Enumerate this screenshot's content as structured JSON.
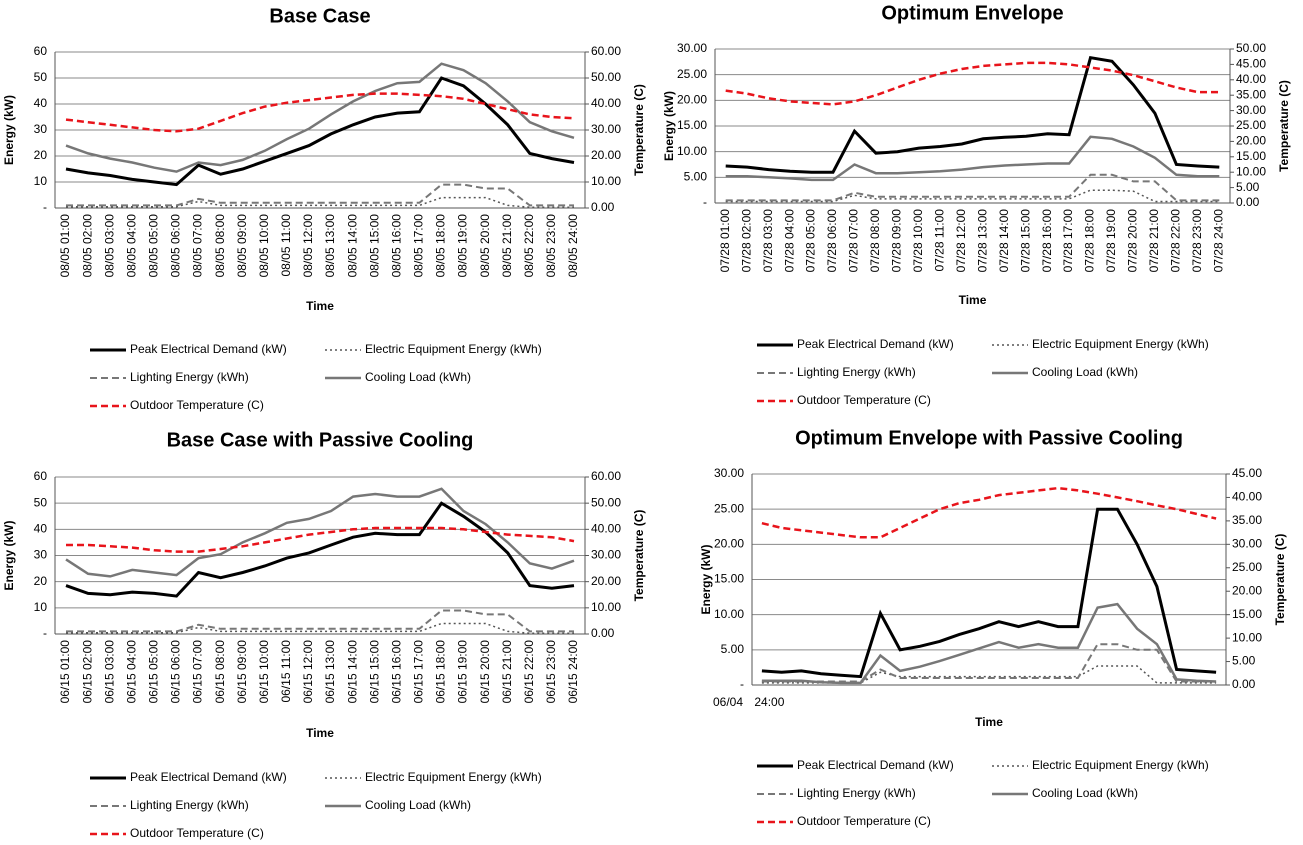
{
  "chart_data": [
    {
      "type": "line",
      "title": "Base Case",
      "xlabel": "Time",
      "ylabel": "Energy (kW)",
      "y2label": "Temperature (C)",
      "categories": [
        "08/05 01:00",
        "08/05 02:00",
        "08/05 03:00",
        "08/05 04:00",
        "08/05 05:00",
        "08/05 06:00",
        "08/05 07:00",
        "08/05 08:00",
        "08/05 09:00",
        "08/05 10:00",
        "08/05 11:00",
        "08/05 12:00",
        "08/05 13:00",
        "08/05 14:00",
        "08/05 15:00",
        "08/05 16:00",
        "08/05 17:00",
        "08/05 18:00",
        "08/05 19:00",
        "08/05 20:00",
        "08/05 21:00",
        "08/05 22:00",
        "08/05 23:00",
        "08/05 24:00"
      ],
      "ylim": [
        0,
        60
      ],
      "yticks": [
        {
          "value": 0,
          "label": "-"
        },
        10,
        20,
        30,
        40,
        50,
        60
      ],
      "y2lim": [
        0,
        60
      ],
      "y2ticks": [
        {
          "value": 0,
          "label": "0.00"
        },
        {
          "value": 10,
          "label": "10.00"
        },
        {
          "value": 20,
          "label": "20.00"
        },
        {
          "value": 30,
          "label": "30.00"
        },
        {
          "value": 40,
          "label": "40.00"
        },
        {
          "value": 50,
          "label": "50.00"
        },
        {
          "value": 60,
          "label": "60.00"
        }
      ],
      "grid": true,
      "series": [
        {
          "name": "Peak Electrical Demand (kW)",
          "color": "#000000",
          "style": "solid",
          "linewidth": 3,
          "values": [
            15,
            13.5,
            12.5,
            11,
            10,
            9,
            16.5,
            13,
            15,
            18,
            21,
            24,
            28.5,
            32,
            35,
            36.5,
            37,
            50,
            47,
            40,
            32,
            21,
            19,
            17.5
          ]
        },
        {
          "name": "Electric Equipment Energy (kWh)",
          "color": "#555555",
          "style": "dotted",
          "linewidth": 1.5,
          "values": [
            0.5,
            0.5,
            0.5,
            0.5,
            0.5,
            0.5,
            2.5,
            1,
            1,
            1,
            1,
            1,
            1,
            1,
            1,
            1,
            1,
            4,
            4,
            4,
            1,
            0.3,
            0.3,
            0.3
          ]
        },
        {
          "name": "Lighting Energy (kWh)",
          "color": "#777777",
          "style": "dashed",
          "linewidth": 2,
          "values": [
            1,
            1,
            1,
            1,
            1,
            1,
            3.5,
            2,
            2,
            2,
            2,
            2,
            2,
            2,
            2,
            2,
            2,
            9,
            9,
            7.5,
            7.5,
            1,
            1,
            1
          ]
        },
        {
          "name": "Cooling Load (kWh)",
          "color": "#777777",
          "style": "solid",
          "linewidth": 2.5,
          "values": [
            24,
            21,
            19,
            17.5,
            15.5,
            14,
            17.5,
            16.5,
            18.5,
            22,
            26.5,
            30.5,
            36,
            41,
            45,
            48,
            48.5,
            55.5,
            53,
            48,
            41,
            33,
            29.5,
            27
          ]
        },
        {
          "name": "Outdoor Temperature (C)",
          "color": "#e8141b",
          "style": "dashed",
          "linewidth": 2.5,
          "axis": "y2",
          "values": [
            34,
            33,
            32,
            31,
            30,
            29.5,
            30.5,
            33.5,
            36.5,
            39,
            40.5,
            41.5,
            42.5,
            43.5,
            44,
            44,
            43.5,
            43,
            42,
            40,
            38,
            36,
            35,
            34.5
          ]
        }
      ]
    },
    {
      "type": "line",
      "title": "Optimum Envelope",
      "xlabel": "Time",
      "ylabel": "Energy (kW)",
      "y2label": "Temperature (C)",
      "categories": [
        "07/28 01:00",
        "07/28 02:00",
        "07/28 03:00",
        "07/28 04:00",
        "07/28 05:00",
        "07/28 06:00",
        "07/28 07:00",
        "07/28 08:00",
        "07/28 09:00",
        "07/28 10:00",
        "07/28 11:00",
        "07/28 12:00",
        "07/28 13:00",
        "07/28 14:00",
        "07/28 15:00",
        "07/28 16:00",
        "07/28 17:00",
        "07/28 18:00",
        "07/28 19:00",
        "07/28 20:00",
        "07/28 21:00",
        "07/28 22:00",
        "07/28 23:00",
        "07/28 24:00"
      ],
      "ylim": [
        0,
        30
      ],
      "yticks": [
        {
          "value": 0,
          "label": "-"
        },
        {
          "value": 5,
          "label": "5.00"
        },
        {
          "value": 10,
          "label": "10.00"
        },
        {
          "value": 15,
          "label": "15.00"
        },
        {
          "value": 20,
          "label": "20.00"
        },
        {
          "value": 25,
          "label": "25.00"
        },
        {
          "value": 30,
          "label": "30.00"
        }
      ],
      "y2lim": [
        0,
        50
      ],
      "y2ticks": [
        {
          "value": 0,
          "label": "0.00"
        },
        {
          "value": 5,
          "label": "5.00"
        },
        {
          "value": 10,
          "label": "10.00"
        },
        {
          "value": 15,
          "label": "15.00"
        },
        {
          "value": 20,
          "label": "20.00"
        },
        {
          "value": 25,
          "label": "25.00"
        },
        {
          "value": 30,
          "label": "30.00"
        },
        {
          "value": 35,
          "label": "35.00"
        },
        {
          "value": 40,
          "label": "40.00"
        },
        {
          "value": 45,
          "label": "45.00"
        },
        {
          "value": 50,
          "label": "50.00"
        }
      ],
      "grid": true,
      "series": [
        {
          "name": "Peak Electrical Demand (kW)",
          "color": "#000000",
          "style": "solid",
          "linewidth": 3,
          "values": [
            7.2,
            7,
            6.5,
            6.2,
            6,
            6,
            14,
            9.7,
            10,
            10.7,
            11,
            11.5,
            12.5,
            12.8,
            13,
            13.5,
            13.3,
            28.3,
            27.6,
            23,
            17.5,
            7.5,
            7.2,
            7
          ]
        },
        {
          "name": "Electric Equipment Energy (kWh)",
          "color": "#555555",
          "style": "dotted",
          "linewidth": 1.5,
          "values": [
            0.3,
            0.3,
            0.3,
            0.3,
            0.3,
            0.3,
            1.5,
            0.8,
            0.8,
            0.8,
            0.8,
            0.8,
            0.8,
            0.8,
            0.8,
            0.8,
            0.8,
            2.5,
            2.5,
            2.3,
            0.3,
            0.3,
            0.3,
            0.3
          ]
        },
        {
          "name": "Lighting Energy (kWh)",
          "color": "#777777",
          "style": "dashed",
          "linewidth": 2,
          "values": [
            0.5,
            0.5,
            0.5,
            0.5,
            0.5,
            0.5,
            2,
            1.2,
            1.2,
            1.2,
            1.2,
            1.2,
            1.2,
            1.2,
            1.2,
            1.2,
            1.2,
            5.5,
            5.5,
            4.2,
            4.2,
            0.5,
            0.5,
            0.5
          ]
        },
        {
          "name": "Cooling Load (kWh)",
          "color": "#777777",
          "style": "solid",
          "linewidth": 2.5,
          "values": [
            5.2,
            5.2,
            5,
            4.8,
            4.5,
            4.5,
            7.5,
            5.8,
            5.8,
            6,
            6.2,
            6.5,
            7,
            7.3,
            7.5,
            7.7,
            7.7,
            12.9,
            12.5,
            11,
            8.8,
            5.5,
            5.2,
            5.2
          ]
        },
        {
          "name": "Outdoor Temperature (C)",
          "color": "#e8141b",
          "style": "dashed",
          "linewidth": 2.5,
          "axis": "y2",
          "values": [
            36.5,
            35.5,
            34,
            33,
            32.5,
            32,
            33,
            35,
            37.5,
            40,
            42,
            43.5,
            44.5,
            45,
            45.5,
            45.5,
            45,
            44,
            43,
            41.5,
            39.5,
            37.5,
            36,
            36
          ]
        }
      ]
    },
    {
      "type": "line",
      "title": "Base Case with Passive Cooling",
      "xlabel": "Time",
      "ylabel": "Energy (kW)",
      "y2label": "Temperature (C)",
      "categories": [
        "06/15 01:00",
        "06/15 02:00",
        "06/15 03:00",
        "06/15 04:00",
        "06/15 05:00",
        "06/15 06:00",
        "06/15 07:00",
        "06/15 08:00",
        "06/15 09:00",
        "06/15 10:00",
        "06/15 11:00",
        "06/15 12:00",
        "06/15 13:00",
        "06/15 14:00",
        "06/15 15:00",
        "06/15 16:00",
        "06/15 17:00",
        "06/15 18:00",
        "06/15 19:00",
        "06/15 20:00",
        "06/15 21:00",
        "06/15 22:00",
        "06/15 23:00",
        "06/15 24:00"
      ],
      "ylim": [
        0,
        60
      ],
      "yticks": [
        {
          "value": 0,
          "label": "-"
        },
        10,
        20,
        30,
        40,
        50,
        60
      ],
      "y2lim": [
        0,
        60
      ],
      "y2ticks": [
        {
          "value": 0,
          "label": "0.00"
        },
        {
          "value": 10,
          "label": "10.00"
        },
        {
          "value": 20,
          "label": "20.00"
        },
        {
          "value": 30,
          "label": "30.00"
        },
        {
          "value": 40,
          "label": "40.00"
        },
        {
          "value": 50,
          "label": "50.00"
        },
        {
          "value": 60,
          "label": "60.00"
        }
      ],
      "grid": true,
      "series": [
        {
          "name": "Peak Electrical Demand (kW)",
          "color": "#000000",
          "style": "solid",
          "linewidth": 3,
          "values": [
            18.5,
            15.5,
            15,
            16,
            15.5,
            14.5,
            23.5,
            21.5,
            23.5,
            26,
            29,
            31,
            34,
            37,
            38.5,
            38,
            38,
            50,
            45,
            39,
            31,
            18.5,
            17.5,
            18.5
          ]
        },
        {
          "name": "Electric Equipment Energy (kWh)",
          "color": "#555555",
          "style": "dotted",
          "linewidth": 1.5,
          "values": [
            0.5,
            0.5,
            0.5,
            0.5,
            0.5,
            0.5,
            2.5,
            1,
            1,
            1,
            1,
            1,
            1,
            1,
            1,
            1,
            1,
            4,
            4,
            4,
            1,
            0.3,
            0.3,
            0.3
          ]
        },
        {
          "name": "Lighting Energy (kWh)",
          "color": "#777777",
          "style": "dashed",
          "linewidth": 2,
          "values": [
            1,
            1,
            1,
            1,
            1,
            1,
            3.5,
            2,
            2,
            2,
            2,
            2,
            2,
            2,
            2,
            2,
            2,
            9,
            9,
            7.5,
            7.5,
            1,
            1,
            1
          ]
        },
        {
          "name": "Cooling Load (kWh)",
          "color": "#777777",
          "style": "solid",
          "linewidth": 2.5,
          "values": [
            28.5,
            23,
            22,
            24.5,
            23.5,
            22.5,
            29,
            30.5,
            35,
            38.5,
            42.5,
            44,
            47,
            52.5,
            53.5,
            52.5,
            52.5,
            55.5,
            47,
            42,
            35,
            27,
            25,
            28
          ]
        },
        {
          "name": "Outdoor Temperature (C)",
          "color": "#e8141b",
          "style": "dashed",
          "linewidth": 2.5,
          "axis": "y2",
          "values": [
            34,
            34,
            33.5,
            33,
            32,
            31.5,
            31.5,
            32.5,
            33.5,
            35,
            36.5,
            38,
            39,
            40,
            40.5,
            40.5,
            40.5,
            40.5,
            40,
            39,
            38,
            37.5,
            37,
            35.5
          ]
        }
      ]
    },
    {
      "type": "line",
      "title": "Optimum Envelope with Passive Cooling",
      "xlabel": "Time",
      "ylabel": "Energy (kW)",
      "y2label": "Temperature (C)",
      "categories": [
        "06/04 24:00",
        null,
        null,
        null,
        null,
        null,
        null,
        null,
        null,
        null,
        null,
        null,
        null,
        null,
        null,
        null,
        null,
        null,
        null,
        null,
        null,
        null,
        null,
        null
      ],
      "ylim": [
        0,
        30
      ],
      "yticks": [
        {
          "value": 0,
          "label": "-"
        },
        {
          "value": 5,
          "label": "5.00"
        },
        {
          "value": 10,
          "label": "10.00"
        },
        {
          "value": 15,
          "label": "15.00"
        },
        {
          "value": 20,
          "label": "20.00"
        },
        {
          "value": 25,
          "label": "25.00"
        },
        {
          "value": 30,
          "label": "30.00"
        }
      ],
      "y2lim": [
        0,
        45
      ],
      "y2ticks": [
        {
          "value": 0,
          "label": "0.00"
        },
        {
          "value": 5,
          "label": "5.00"
        },
        {
          "value": 10,
          "label": "10.00"
        },
        {
          "value": 15,
          "label": "15.00"
        },
        {
          "value": 20,
          "label": "20.00"
        },
        {
          "value": 25,
          "label": "25.00"
        },
        {
          "value": 30,
          "label": "30.00"
        },
        {
          "value": 35,
          "label": "35.00"
        },
        {
          "value": 40,
          "label": "40.00"
        },
        {
          "value": 45,
          "label": "45.00"
        }
      ],
      "grid": true,
      "series": [
        {
          "name": "Peak Electrical Demand (kW)",
          "color": "#000000",
          "style": "solid",
          "linewidth": 3,
          "values": [
            2,
            1.8,
            2,
            1.6,
            1.4,
            1.2,
            10.2,
            5,
            5.5,
            6.2,
            7.2,
            8,
            9,
            8.3,
            9,
            8.3,
            8.3,
            25,
            25,
            20,
            14,
            2.2,
            2,
            1.8
          ]
        },
        {
          "name": "Electric Equipment Energy (kWh)",
          "color": "#555555",
          "style": "dotted",
          "linewidth": 1.5,
          "values": [
            0.3,
            0.3,
            0.3,
            0.3,
            0.3,
            0.3,
            1.8,
            1.2,
            1.2,
            1.2,
            1.2,
            1.2,
            1.2,
            1.2,
            1.2,
            1.2,
            1.2,
            2.7,
            2.7,
            2.7,
            0.3,
            0.3,
            0.3,
            0.3
          ]
        },
        {
          "name": "Lighting Energy (kWh)",
          "color": "#777777",
          "style": "dashed",
          "linewidth": 2,
          "values": [
            0.5,
            0.5,
            0.5,
            0.5,
            0.5,
            0.5,
            2.2,
            1,
            1,
            1,
            1,
            1,
            1,
            1,
            1,
            1,
            1,
            5.8,
            5.8,
            5,
            5,
            0.5,
            0.5,
            0.5
          ]
        },
        {
          "name": "Cooling Load (kWh)",
          "color": "#777777",
          "style": "solid",
          "linewidth": 2.5,
          "values": [
            0.6,
            0.6,
            0.6,
            0.4,
            0.3,
            0.3,
            4.2,
            2,
            2.6,
            3.4,
            4.3,
            5.2,
            6.1,
            5.3,
            5.8,
            5.3,
            5.3,
            11,
            11.5,
            8,
            5.8,
            0.8,
            0.6,
            0.5
          ]
        },
        {
          "name": "Outdoor Temperature (C)",
          "color": "#e8141b",
          "style": "dashed",
          "linewidth": 2.5,
          "axis": "y2",
          "values": [
            34.5,
            33.5,
            33,
            32.5,
            32,
            31.5,
            31.5,
            33.5,
            35.5,
            37.5,
            38.8,
            39.5,
            40.5,
            41,
            41.5,
            42,
            41.5,
            40.8,
            40,
            39.2,
            38.3,
            37.5,
            36.5,
            35.5
          ]
        }
      ]
    }
  ]
}
